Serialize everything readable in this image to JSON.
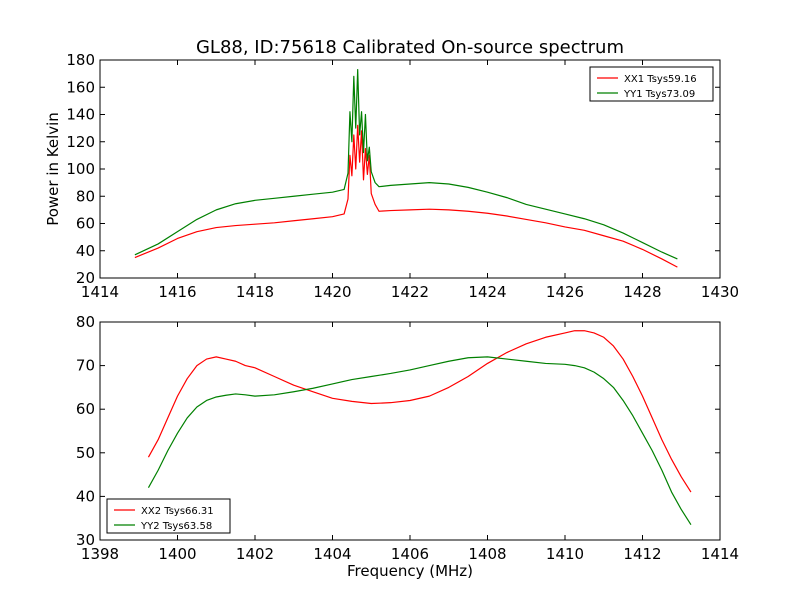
{
  "chart_data": [
    {
      "type": "line",
      "title": "GL88, ID:75618 Calibrated On-source spectrum",
      "xlabel": "",
      "ylabel": "Power in Kelvin",
      "xlim": [
        1414,
        1430
      ],
      "ylim": [
        20,
        180
      ],
      "xticks": [
        1414,
        1416,
        1418,
        1420,
        1422,
        1424,
        1426,
        1428,
        1430
      ],
      "yticks": [
        20,
        40,
        60,
        80,
        100,
        120,
        140,
        160,
        180
      ],
      "legend_position": "top-right",
      "series": [
        {
          "name": "XX1 Tsys59.16",
          "color": "#ff0000",
          "x": [
            1414.9,
            1415.5,
            1416.0,
            1416.5,
            1417.0,
            1417.5,
            1418.0,
            1418.5,
            1419.0,
            1419.5,
            1420.0,
            1420.3,
            1420.4,
            1420.45,
            1420.5,
            1420.55,
            1420.6,
            1420.65,
            1420.7,
            1420.75,
            1420.8,
            1420.85,
            1420.9,
            1420.95,
            1421.0,
            1421.1,
            1421.2,
            1421.5,
            1422.0,
            1422.5,
            1423.0,
            1423.5,
            1424.0,
            1424.5,
            1425.0,
            1425.5,
            1426.0,
            1426.5,
            1427.0,
            1427.5,
            1428.0,
            1428.5,
            1428.9
          ],
          "y": [
            35,
            42,
            49,
            54,
            57,
            58.5,
            59.5,
            60.5,
            62,
            63.5,
            65,
            67,
            78,
            110,
            95,
            125,
            100,
            132,
            105,
            128,
            92,
            115,
            96,
            110,
            82,
            74,
            69,
            69.5,
            70,
            70.5,
            70,
            69,
            67.5,
            65.5,
            63,
            60.5,
            57.5,
            55,
            51,
            47,
            41,
            34,
            28
          ]
        },
        {
          "name": "YY1 Tsys73.09",
          "color": "#008000",
          "x": [
            1414.9,
            1415.5,
            1416.0,
            1416.5,
            1417.0,
            1417.5,
            1418.0,
            1418.5,
            1419.0,
            1419.5,
            1420.0,
            1420.3,
            1420.4,
            1420.45,
            1420.5,
            1420.55,
            1420.6,
            1420.65,
            1420.7,
            1420.75,
            1420.8,
            1420.85,
            1420.9,
            1420.95,
            1421.0,
            1421.1,
            1421.2,
            1421.5,
            1422.0,
            1422.5,
            1423.0,
            1423.5,
            1424.0,
            1424.5,
            1425.0,
            1425.5,
            1426.0,
            1426.5,
            1427.0,
            1427.5,
            1428.0,
            1428.5,
            1428.9
          ],
          "y": [
            37,
            45,
            54,
            63,
            70,
            74.5,
            77,
            78.5,
            80,
            81.5,
            83,
            85,
            97,
            142,
            120,
            168,
            130,
            173,
            125,
            142,
            112,
            140,
            106,
            116,
            98,
            90,
            87,
            88,
            89,
            90,
            89,
            86.5,
            83,
            79,
            74,
            70.5,
            67,
            63.5,
            59,
            53,
            46,
            39,
            34
          ]
        }
      ]
    },
    {
      "type": "line",
      "title": "",
      "xlabel": "Frequency (MHz)",
      "ylabel": "",
      "xlim": [
        1398,
        1414
      ],
      "ylim": [
        30,
        80
      ],
      "xticks": [
        1398,
        1400,
        1402,
        1404,
        1406,
        1408,
        1410,
        1412,
        1414
      ],
      "yticks": [
        30,
        40,
        50,
        60,
        70,
        80
      ],
      "legend_position": "bottom-left",
      "series": [
        {
          "name": "XX2 Tsys66.31",
          "color": "#ff0000",
          "x": [
            1399.25,
            1399.5,
            1399.75,
            1400.0,
            1400.25,
            1400.5,
            1400.75,
            1401.0,
            1401.25,
            1401.5,
            1401.75,
            1402.0,
            1402.5,
            1403.0,
            1403.5,
            1404.0,
            1404.5,
            1405.0,
            1405.5,
            1406.0,
            1406.5,
            1407.0,
            1407.5,
            1408.0,
            1408.5,
            1409.0,
            1409.5,
            1410.0,
            1410.25,
            1410.5,
            1410.75,
            1411.0,
            1411.25,
            1411.5,
            1411.75,
            1412.0,
            1412.25,
            1412.5,
            1412.75,
            1413.0,
            1413.25
          ],
          "y": [
            49,
            53,
            58,
            63,
            67,
            70,
            71.5,
            72,
            71.5,
            71,
            70,
            69.5,
            67.5,
            65.5,
            64,
            62.5,
            61.8,
            61.3,
            61.5,
            62,
            63,
            65,
            67.5,
            70.5,
            73,
            75,
            76.5,
            77.5,
            78,
            78,
            77.5,
            76.5,
            74.5,
            71.5,
            67.5,
            63,
            58,
            53,
            48.5,
            44.5,
            41
          ]
        },
        {
          "name": "YY2 Tsys63.58",
          "color": "#008000",
          "x": [
            1399.25,
            1399.5,
            1399.75,
            1400.0,
            1400.25,
            1400.5,
            1400.75,
            1401.0,
            1401.25,
            1401.5,
            1401.75,
            1402.0,
            1402.5,
            1403.0,
            1403.5,
            1404.0,
            1404.5,
            1405.0,
            1405.5,
            1406.0,
            1406.5,
            1407.0,
            1407.5,
            1408.0,
            1408.5,
            1409.0,
            1409.5,
            1410.0,
            1410.25,
            1410.5,
            1410.75,
            1411.0,
            1411.25,
            1411.5,
            1411.75,
            1412.0,
            1412.25,
            1412.5,
            1412.75,
            1413.0,
            1413.25
          ],
          "y": [
            42,
            46,
            50.5,
            54.5,
            58,
            60.5,
            62,
            62.8,
            63.2,
            63.5,
            63.3,
            63,
            63.3,
            64,
            64.8,
            65.8,
            66.8,
            67.5,
            68.2,
            69,
            70,
            71,
            71.8,
            72,
            71.5,
            71,
            70.5,
            70.3,
            70,
            69.5,
            68.5,
            67,
            65,
            62,
            58.5,
            54.5,
            50.5,
            46,
            41,
            37,
            33.5
          ]
        }
      ]
    }
  ]
}
